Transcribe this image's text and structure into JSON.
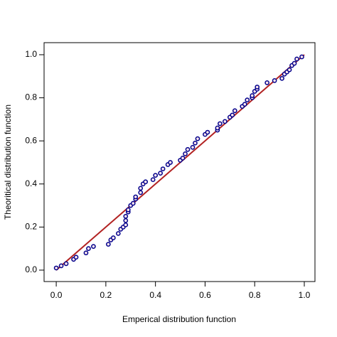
{
  "chart_data": {
    "type": "scatter",
    "x_label": "Emperical distribution function",
    "y_label": "Theoritical distribution function",
    "xlim": [
      -0.049,
      1.043
    ],
    "ylim": [
      -0.053,
      1.056
    ],
    "xticks": [
      {
        "value": 0,
        "label": "0.0"
      },
      {
        "value": 0.2,
        "label": "0.2"
      },
      {
        "value": 0.4,
        "label": "0.4"
      },
      {
        "value": 0.6,
        "label": "0.6"
      },
      {
        "value": 0.8,
        "label": "0.8"
      },
      {
        "value": 1,
        "label": "1.0"
      }
    ],
    "yticks": [
      {
        "value": 0,
        "label": "0.0"
      },
      {
        "value": 0.2,
        "label": "0.2"
      },
      {
        "value": 0.4,
        "label": "0.4"
      },
      {
        "value": 0.6,
        "label": "0.6"
      },
      {
        "value": 0.8,
        "label": "0.8"
      },
      {
        "value": 1,
        "label": "1.0"
      }
    ],
    "grid": false,
    "marker_color": "#00008b",
    "marker_fill": "#ffe6ee",
    "x": [
      0.0,
      0.02,
      0.04,
      0.07,
      0.08,
      0.12,
      0.13,
      0.15,
      0.21,
      0.22,
      0.23,
      0.25,
      0.26,
      0.27,
      0.28,
      0.28,
      0.28,
      0.29,
      0.29,
      0.3,
      0.31,
      0.32,
      0.32,
      0.34,
      0.34,
      0.35,
      0.36,
      0.39,
      0.4,
      0.42,
      0.43,
      0.45,
      0.46,
      0.5,
      0.51,
      0.52,
      0.53,
      0.55,
      0.56,
      0.57,
      0.6,
      0.61,
      0.65,
      0.65,
      0.66,
      0.68,
      0.7,
      0.71,
      0.72,
      0.75,
      0.76,
      0.77,
      0.79,
      0.79,
      0.8,
      0.81,
      0.81,
      0.85,
      0.88,
      0.91,
      0.92,
      0.93,
      0.94,
      0.95,
      0.96,
      0.97,
      0.99
    ],
    "y": [
      0.01,
      0.02,
      0.03,
      0.05,
      0.06,
      0.08,
      0.1,
      0.11,
      0.12,
      0.14,
      0.15,
      0.17,
      0.19,
      0.2,
      0.21,
      0.23,
      0.25,
      0.27,
      0.28,
      0.3,
      0.31,
      0.33,
      0.34,
      0.36,
      0.38,
      0.4,
      0.41,
      0.42,
      0.44,
      0.45,
      0.47,
      0.49,
      0.5,
      0.51,
      0.52,
      0.54,
      0.56,
      0.57,
      0.59,
      0.61,
      0.63,
      0.64,
      0.65,
      0.66,
      0.68,
      0.69,
      0.71,
      0.72,
      0.74,
      0.76,
      0.77,
      0.79,
      0.8,
      0.81,
      0.83,
      0.84,
      0.85,
      0.87,
      0.88,
      0.89,
      0.91,
      0.92,
      0.93,
      0.95,
      0.96,
      0.98,
      0.99
    ],
    "reference_line": {
      "x": [
        0,
        1
      ],
      "y": [
        0,
        1
      ],
      "color": "#b22222"
    }
  }
}
